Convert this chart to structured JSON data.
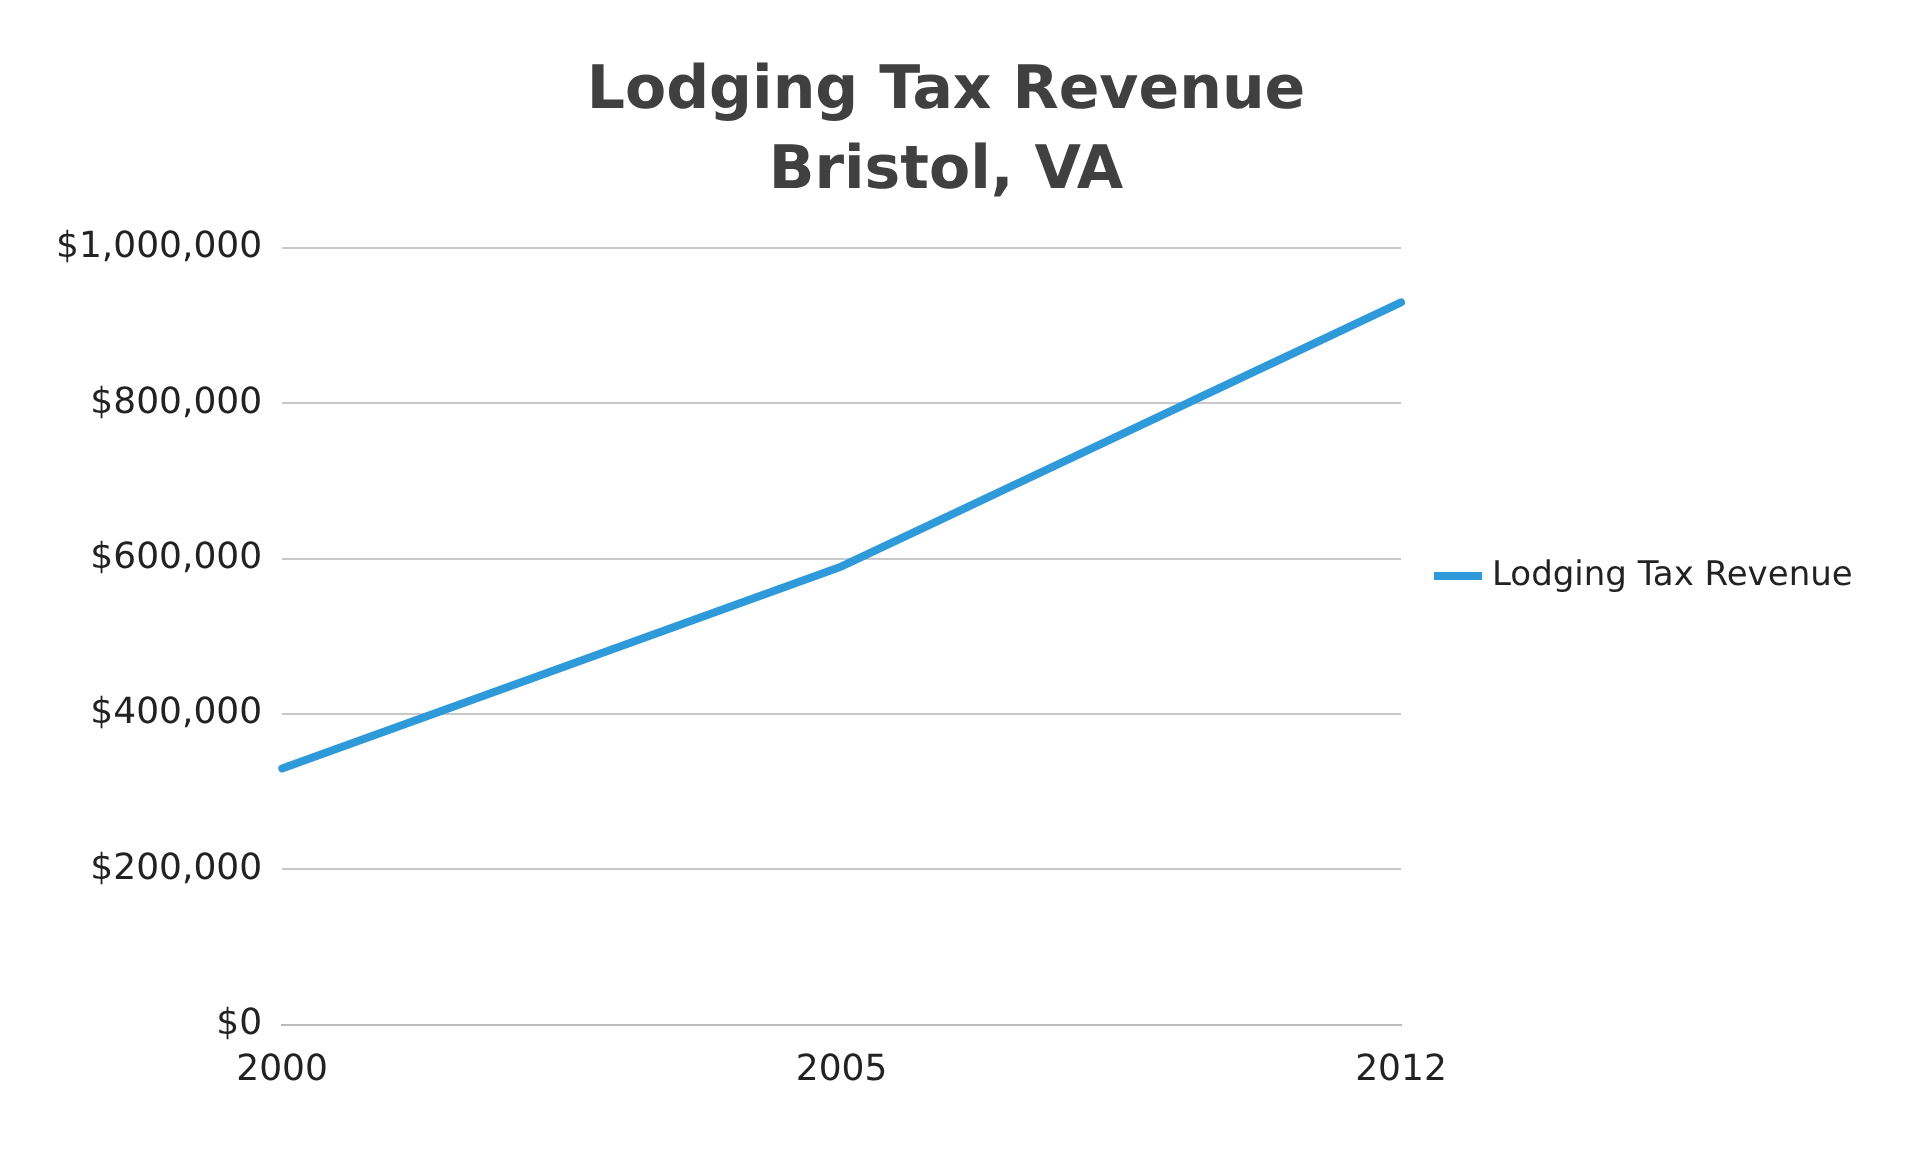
{
  "chart_data": {
    "type": "line",
    "title": "Lodging Tax Revenue",
    "subtitle": "Bristol, VA",
    "categories": [
      "2000",
      "2005",
      "2012"
    ],
    "series": [
      {
        "name": "Lodging Tax Revenue",
        "color": "#2e9ad9",
        "values": [
          330000,
          590000,
          930000
        ]
      }
    ],
    "ylim": [
      0,
      1000000
    ],
    "yticks": [
      {
        "value": 0,
        "label": "$0"
      },
      {
        "value": 200000,
        "label": "$200,000"
      },
      {
        "value": 400000,
        "label": "$400,000"
      },
      {
        "value": 600000,
        "label": "$600,000"
      },
      {
        "value": 800000,
        "label": "$800,000"
      },
      {
        "value": 1000000,
        "label": "$1,000,000"
      }
    ],
    "grid": "y",
    "legend": "right",
    "marker": "none",
    "line_style": "solid"
  }
}
